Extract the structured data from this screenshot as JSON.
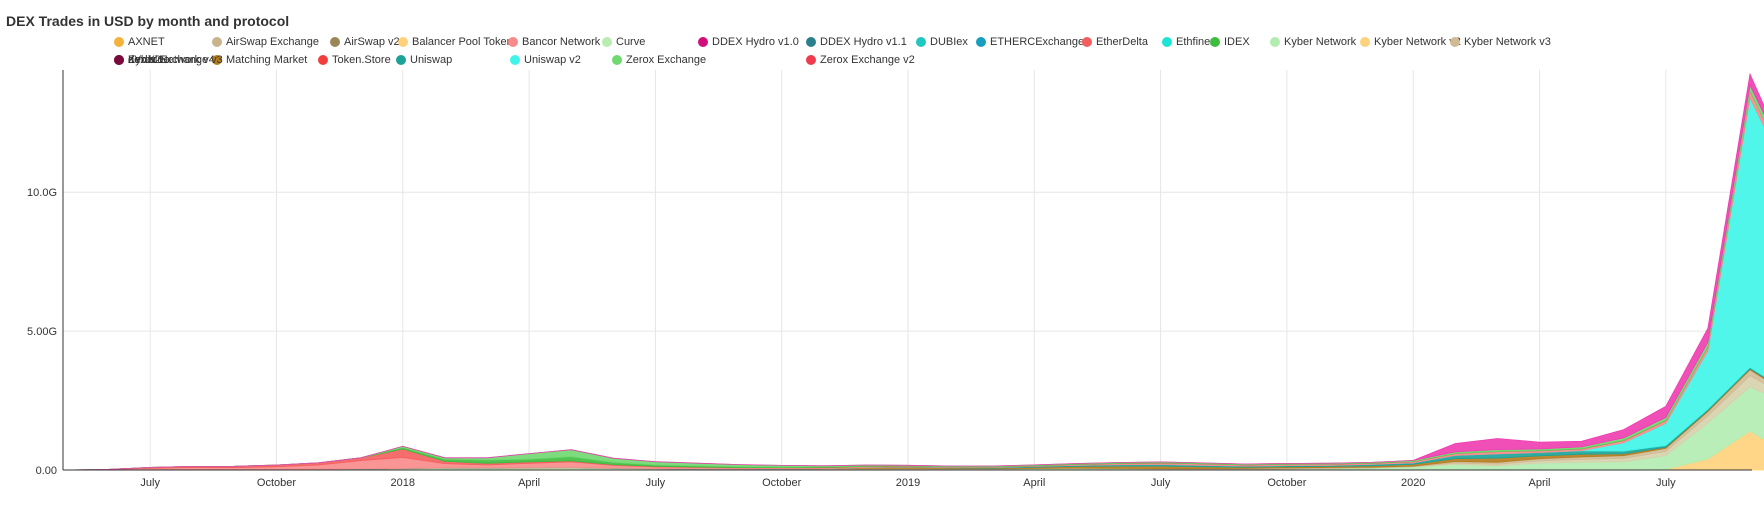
{
  "chart_data": {
    "type": "area",
    "stacked": true,
    "title": "DEX Trades in USD by month and protocol",
    "xlabel": "",
    "ylabel": "",
    "y_unit": "USD",
    "ylim": [
      0,
      14400000000
    ],
    "y_ticks": [
      0,
      5000000000,
      10000000000
    ],
    "y_tick_labels": [
      "0.00",
      "5.00G",
      "10.0G"
    ],
    "x_start": "2017-05",
    "x_end": "2020-09",
    "x_tick_labels": [
      "July",
      "October",
      "2018",
      "April",
      "July",
      "October",
      "2019",
      "April",
      "July",
      "October",
      "2020",
      "April",
      "July"
    ],
    "grid": true,
    "legend_position": "top",
    "legend": [
      {
        "name": "AXNET",
        "color": "#f4b13c"
      },
      {
        "name": "AirSwap Exchange",
        "color": "#c9b38c"
      },
      {
        "name": "AirSwap v2",
        "color": "#9b8658"
      },
      {
        "name": "Balancer Pool Token",
        "color": "#ffd17a"
      },
      {
        "name": "Bancor Network",
        "color": "#f88a8a"
      },
      {
        "name": "Curve",
        "color": "#b8ecb0"
      },
      {
        "name": "DDEX Hydro v1.0",
        "color": "#d10f7c"
      },
      {
        "name": "DDEX Hydro v1.1",
        "color": "#2a7f8c"
      },
      {
        "name": "DUBIex",
        "color": "#1fc7c0"
      },
      {
        "name": "ETHERCExchange",
        "color": "#1a9ec0"
      },
      {
        "name": "EtherDelta",
        "color": "#f55d5d"
      },
      {
        "name": "Ethfinex",
        "color": "#1de5d6"
      },
      {
        "name": "IDEX",
        "color": "#3dbd3d"
      },
      {
        "name": "Kyber Network",
        "color": "#b2ecb0"
      },
      {
        "name": "Kyber Network v2",
        "color": "#fdd27c"
      },
      {
        "name": "Kyber Network v3",
        "color": "#d1bb94"
      },
      {
        "name": "Kyber Network v4",
        "color": "#d6d0ab"
      },
      {
        "name": "Matching Market",
        "color": "#b57c1c"
      },
      {
        "name": "Token.Store",
        "color": "#f23d3d"
      },
      {
        "name": "Uniswap",
        "color": "#1ba399"
      },
      {
        "name": "Uniswap v2",
        "color": "#3ef5e8"
      },
      {
        "name": "Zerox Exchange",
        "color": "#6fd86f"
      },
      {
        "name": "Zerox Exchange v2",
        "color": "#f03a4e"
      },
      {
        "name": "Zerox Exchange v3",
        "color": "#1f5c6b"
      },
      {
        "name": "dYdX2",
        "color": "#ef3cb0"
      },
      {
        "name": "dex.blue",
        "color": "#7a0a3b"
      }
    ],
    "series": [
      {
        "name": "Balancer Pool Token",
        "values": [
          0,
          0,
          0,
          0,
          0,
          0,
          0,
          0,
          0,
          0,
          0,
          0,
          0,
          0,
          0,
          0,
          0,
          0,
          0,
          0,
          0,
          0,
          0,
          0,
          0,
          0,
          0,
          0,
          0,
          0,
          0,
          0,
          0,
          0,
          0,
          0,
          0,
          0,
          20000000,
          400000000,
          1400000000,
          500000000
        ]
      },
      {
        "name": "Kyber Network",
        "values": [
          0,
          0,
          5000000,
          10000000,
          15000000,
          20000000,
          30000000,
          40000000,
          45000000,
          60000000,
          50000000,
          60000000,
          70000000,
          50000000,
          40000000,
          30000000,
          25000000,
          35000000,
          30000000,
          20000000,
          30000000,
          35000000,
          40000000,
          50000000,
          60000000,
          50000000,
          40000000,
          30000000,
          30000000,
          40000000,
          60000000,
          80000000,
          120000000,
          200000000,
          150000000,
          250000000,
          280000000,
          300000000,
          500000000,
          1300000000,
          1600000000,
          1800000000
        ]
      },
      {
        "name": "Kyber Network v4",
        "values": [
          0,
          0,
          0,
          0,
          0,
          0,
          0,
          0,
          0,
          0,
          0,
          0,
          0,
          0,
          0,
          0,
          0,
          0,
          0,
          0,
          0,
          0,
          0,
          0,
          0,
          0,
          0,
          0,
          0,
          0,
          0,
          0,
          0,
          50000000,
          60000000,
          80000000,
          100000000,
          120000000,
          150000000,
          250000000,
          400000000,
          250000000
        ]
      },
      {
        "name": "Kyber Network v3",
        "values": [
          0,
          0,
          0,
          0,
          0,
          0,
          0,
          0,
          0,
          0,
          0,
          0,
          0,
          0,
          0,
          0,
          0,
          0,
          0,
          0,
          0,
          0,
          0,
          0,
          0,
          0,
          0,
          0,
          0,
          0,
          0,
          0,
          0,
          40000000,
          60000000,
          70000000,
          80000000,
          90000000,
          100000000,
          150000000,
          200000000,
          100000000
        ]
      },
      {
        "name": "AirSwap Exchange",
        "values": [
          0,
          0,
          0,
          0,
          0,
          0,
          0,
          0,
          10000000,
          20000000,
          30000000,
          30000000,
          20000000,
          15000000,
          10000000,
          10000000,
          10000000,
          10000000,
          20000000,
          40000000,
          30000000,
          20000000,
          10000000,
          10000000,
          10000000,
          10000000,
          10000000,
          20000000,
          30000000,
          40000000,
          30000000,
          20000000,
          20000000,
          20000000,
          10000000,
          10000000,
          10000000,
          10000000,
          10000000,
          10000000,
          10000000,
          10000000
        ]
      },
      {
        "name": "Matching Market",
        "values": [
          0,
          0,
          0,
          0,
          0,
          0,
          0,
          0,
          0,
          0,
          0,
          0,
          0,
          0,
          0,
          0,
          0,
          0,
          0,
          30000000,
          40000000,
          20000000,
          20000000,
          40000000,
          60000000,
          80000000,
          90000000,
          70000000,
          40000000,
          40000000,
          40000000,
          50000000,
          60000000,
          100000000,
          150000000,
          100000000,
          100000000,
          60000000,
          40000000,
          40000000,
          40000000,
          30000000
        ]
      },
      {
        "name": "Uniswap",
        "values": [
          0,
          0,
          0,
          0,
          0,
          0,
          0,
          0,
          0,
          0,
          0,
          0,
          0,
          0,
          0,
          0,
          0,
          0,
          0,
          5000000,
          10000000,
          15000000,
          20000000,
          30000000,
          40000000,
          50000000,
          60000000,
          50000000,
          40000000,
          40000000,
          40000000,
          50000000,
          60000000,
          120000000,
          150000000,
          120000000,
          120000000,
          100000000,
          60000000,
          40000000,
          40000000,
          30000000
        ]
      },
      {
        "name": "Uniswap v2",
        "values": [
          0,
          0,
          0,
          0,
          0,
          0,
          0,
          0,
          0,
          0,
          0,
          0,
          0,
          0,
          0,
          0,
          0,
          0,
          0,
          0,
          0,
          0,
          0,
          0,
          0,
          0,
          0,
          0,
          0,
          0,
          0,
          0,
          0,
          0,
          0,
          0,
          10000000,
          300000000,
          800000000,
          2100000000,
          9700000000,
          7600000000
        ]
      },
      {
        "name": "Bancor Network",
        "values": [
          0,
          20000000,
          60000000,
          80000000,
          70000000,
          100000000,
          150000000,
          300000000,
          400000000,
          150000000,
          100000000,
          150000000,
          200000000,
          100000000,
          60000000,
          50000000,
          40000000,
          30000000,
          30000000,
          30000000,
          25000000,
          20000000,
          20000000,
          20000000,
          30000000,
          40000000,
          50000000,
          50000000,
          40000000,
          40000000,
          40000000,
          40000000,
          40000000,
          60000000,
          80000000,
          60000000,
          60000000,
          80000000,
          100000000,
          150000000,
          250000000,
          200000000
        ]
      },
      {
        "name": "EtherDelta",
        "values": [
          0,
          0,
          30000000,
          40000000,
          50000000,
          60000000,
          80000000,
          100000000,
          300000000,
          80000000,
          60000000,
          50000000,
          40000000,
          30000000,
          20000000,
          15000000,
          10000000,
          10000000,
          10000000,
          10000000,
          5000000,
          5000000,
          5000000,
          5000000,
          5000000,
          5000000,
          5000000,
          5000000,
          5000000,
          5000000,
          5000000,
          5000000,
          5000000,
          5000000,
          5000000,
          5000000,
          5000000,
          5000000,
          5000000,
          5000000,
          5000000,
          5000000
        ]
      },
      {
        "name": "IDEX",
        "values": [
          0,
          0,
          0,
          0,
          0,
          0,
          0,
          0,
          50000000,
          80000000,
          120000000,
          100000000,
          150000000,
          80000000,
          50000000,
          40000000,
          30000000,
          20000000,
          20000000,
          15000000,
          10000000,
          10000000,
          10000000,
          10000000,
          10000000,
          15000000,
          15000000,
          10000000,
          10000000,
          10000000,
          10000000,
          10000000,
          10000000,
          10000000,
          10000000,
          10000000,
          10000000,
          10000000,
          10000000,
          10000000,
          10000000,
          10000000
        ]
      },
      {
        "name": "Zerox Exchange",
        "values": [
          0,
          0,
          0,
          0,
          0,
          0,
          0,
          0,
          50000000,
          50000000,
          80000000,
          200000000,
          250000000,
          150000000,
          120000000,
          100000000,
          80000000,
          60000000,
          40000000,
          30000000,
          20000000,
          20000000,
          20000000,
          20000000,
          20000000,
          20000000,
          20000000,
          20000000,
          20000000,
          20000000,
          20000000,
          20000000,
          30000000,
          50000000,
          60000000,
          50000000,
          60000000,
          80000000,
          100000000,
          150000000,
          200000000,
          150000000
        ]
      },
      {
        "name": "dYdX2",
        "values": [
          0,
          0,
          0,
          0,
          0,
          0,
          0,
          0,
          0,
          0,
          0,
          0,
          0,
          0,
          0,
          0,
          0,
          0,
          0,
          0,
          0,
          0,
          0,
          0,
          0,
          0,
          0,
          0,
          0,
          0,
          0,
          0,
          0,
          300000000,
          400000000,
          250000000,
          200000000,
          300000000,
          400000000,
          500000000,
          400000000,
          150000000
        ]
      }
    ]
  }
}
